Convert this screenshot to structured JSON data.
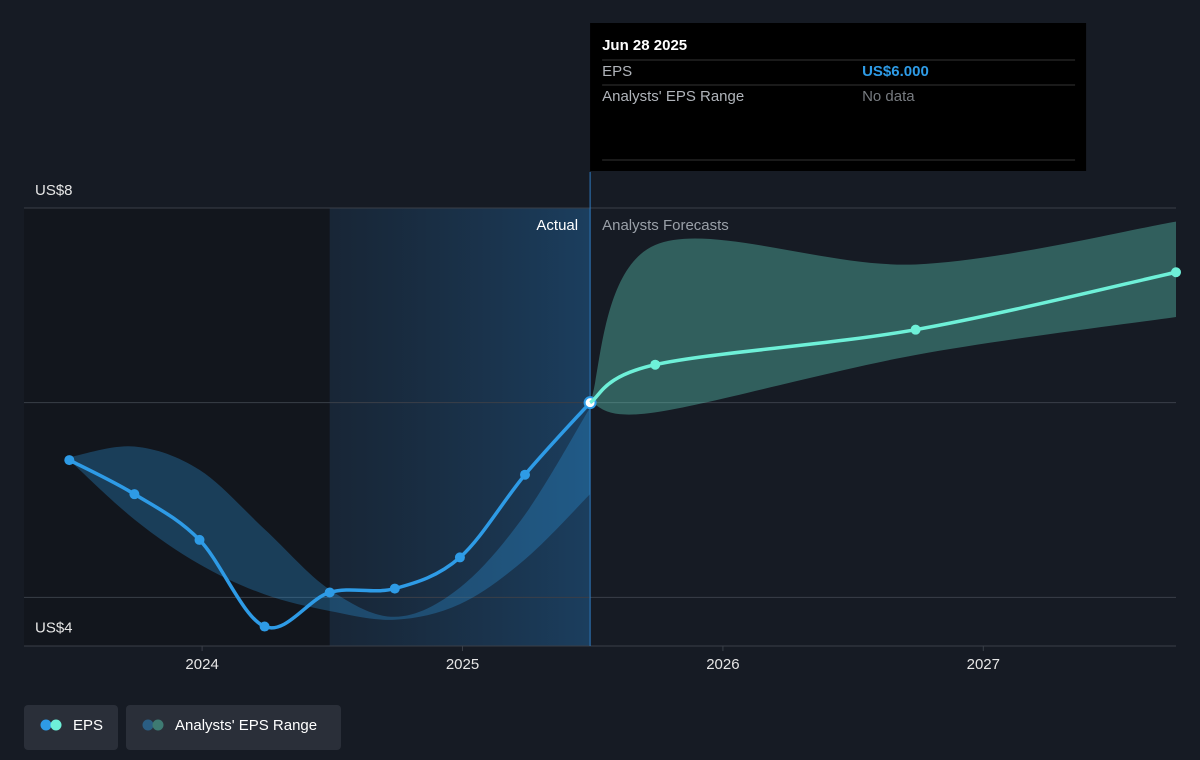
{
  "chart_data": {
    "type": "line",
    "xlim": [
      2023.316,
      2027.74
    ],
    "xticks": [
      2024,
      2025,
      2026,
      2027
    ],
    "ylim": [
      3.5,
      8
    ],
    "yticks": [
      {
        "value": 4,
        "label": "US$4"
      },
      {
        "value": 6,
        "label": null
      },
      {
        "value": 8,
        "label": "US$8"
      }
    ],
    "grid": true,
    "divider_x": 2025.49,
    "annotations": {
      "actual": "Actual",
      "forecast": "Analysts Forecasts"
    },
    "series": [
      {
        "name": "EPS",
        "color": "#2e9be6",
        "x": [
          2023.49,
          2023.74,
          2023.99,
          2024.24,
          2024.49,
          2024.74,
          2024.99,
          2025.24,
          2025.49
        ],
        "values": [
          5.41,
          5.06,
          4.59,
          3.7,
          4.05,
          4.09,
          4.41,
          5.26,
          6.0
        ]
      },
      {
        "color": "#6ef0d8",
        "x": [
          2025.49,
          2025.74,
          2026.74,
          2027.74
        ],
        "values": [
          6.0,
          6.39,
          6.75,
          7.34
        ]
      }
    ],
    "ranges": [
      {
        "name": "Analysts' EPS Range",
        "color": "#2e9be6",
        "legend_color": "#2a5d82",
        "x": [
          2023.49,
          2023.74,
          2023.99,
          2024.24,
          2024.49,
          2024.74,
          2024.99,
          2025.24,
          2025.49
        ],
        "high": [
          5.44,
          5.55,
          5.31,
          4.7,
          4.08,
          3.8,
          4.1,
          4.85,
          5.95
        ],
        "low": [
          5.41,
          4.8,
          4.34,
          4.03,
          3.86,
          3.77,
          3.93,
          4.39,
          5.06
        ]
      },
      {
        "color": "#6ef0d8",
        "legend_color": "#3e7a72",
        "x": [
          2025.49,
          2025.74,
          2026.74,
          2027.74
        ],
        "high": [
          6.0,
          7.62,
          7.42,
          7.86
        ],
        "low": [
          6.0,
          5.9,
          6.49,
          6.88
        ]
      }
    ],
    "tooltip": {
      "date": "Jun 28 2025",
      "rows": [
        {
          "label": "EPS",
          "value": "US$6.000"
        },
        {
          "label": "Analysts' EPS Range",
          "value": "No data"
        }
      ]
    }
  }
}
